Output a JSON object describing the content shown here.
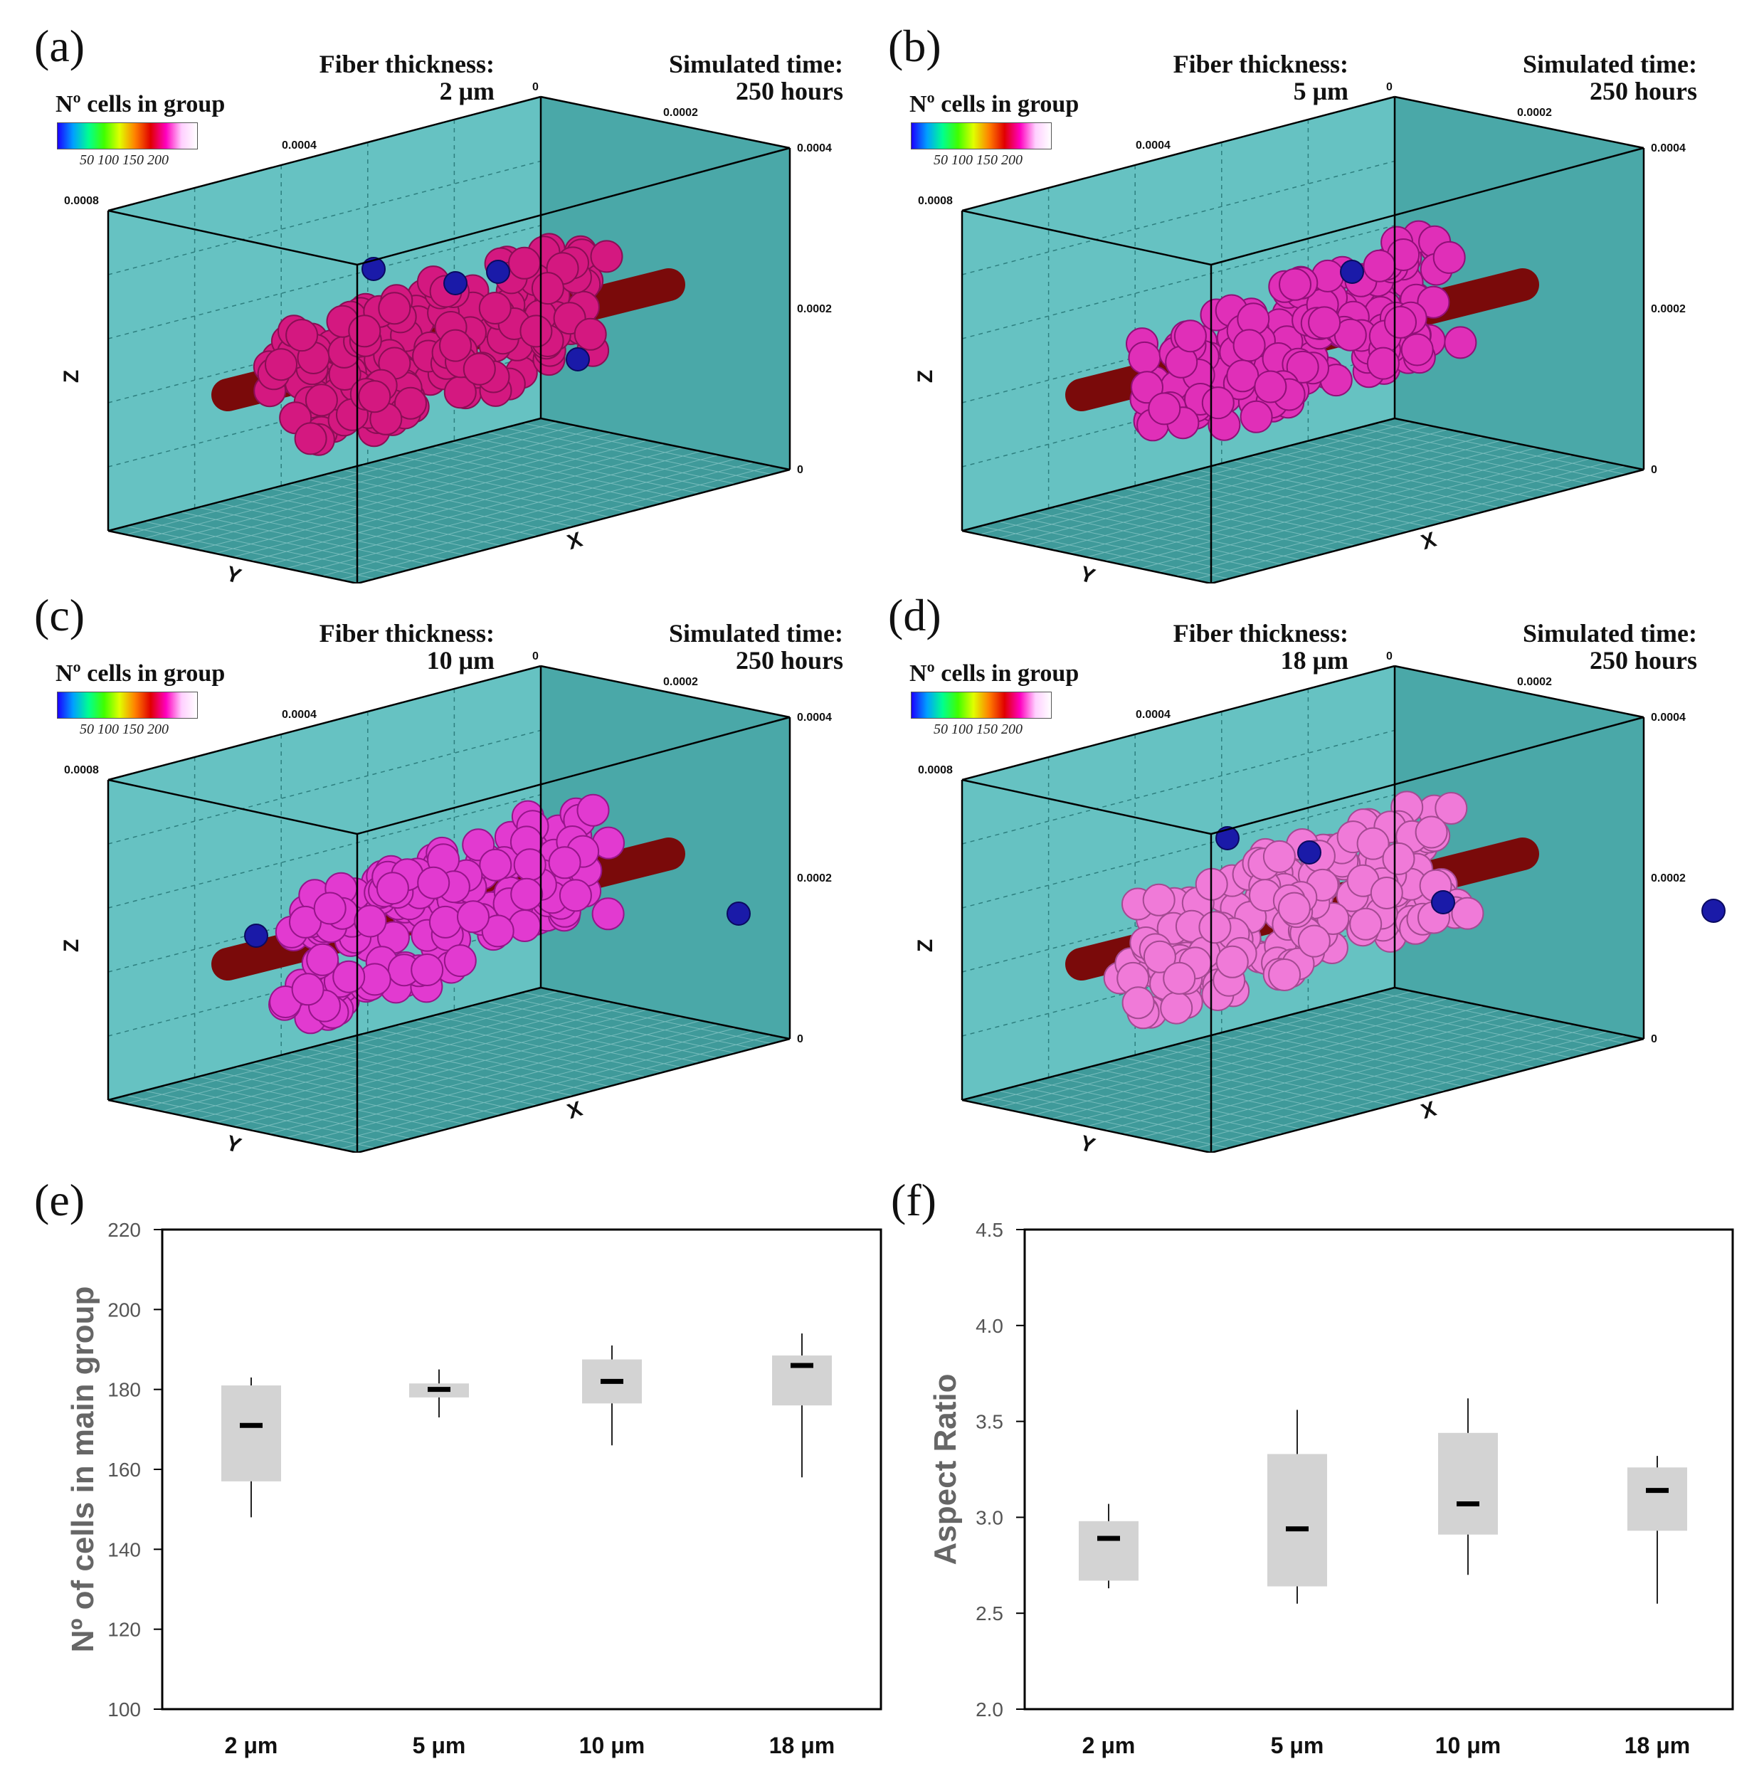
{
  "panels3d": [
    {
      "label": "(a)",
      "fiber_title": "Fiber thickness:",
      "fiber_value": "2 μm",
      "time_title": "Simulated time:",
      "time_value": "250 hours",
      "cell_color": "#d41880",
      "cell_stroke": "#8a0e55",
      "blue_cells": 4
    },
    {
      "label": "(b)",
      "fiber_title": "Fiber thickness:",
      "fiber_value": "5 μm",
      "time_title": "Simulated time:",
      "time_value": "250 hours",
      "cell_color": "#e02fb8",
      "cell_stroke": "#901078",
      "blue_cells": 1
    },
    {
      "label": "(c)",
      "fiber_title": "Fiber thickness:",
      "fiber_value": "10 μm",
      "time_title": "Simulated time:",
      "time_value": "250 hours",
      "cell_color": "#e23ad0",
      "cell_stroke": "#96158a",
      "blue_cells": 2
    },
    {
      "label": "(d)",
      "fiber_title": "Fiber thickness:",
      "fiber_value": "18 μm",
      "time_title": "Simulated time:",
      "time_value": "250 hours",
      "cell_color": "#f07ad8",
      "cell_stroke": "#a44a92",
      "blue_cells": 4
    }
  ],
  "colorbar": {
    "title": "Nº cells in group",
    "ticks": "50  100  150  200"
  },
  "axes3d": {
    "x_label": "X",
    "y_label": "Y",
    "z_label": "Z",
    "y_ticks": [
      "0.0008",
      "0.0004"
    ],
    "x_ticks": [
      "0",
      "0.0002",
      "0.0004"
    ],
    "z_ticks": [
      "0.0004",
      "0.0002",
      "0"
    ]
  },
  "colors": {
    "box_fill": "#5ebfbf",
    "box_floor": "#3f9a9a",
    "fiber": "#7a0a0a",
    "blue_cell": "#1a1aa8",
    "box_fill_plot": "#d3d3d3"
  },
  "chart_data": [
    {
      "label": "(e)",
      "type": "box",
      "categories": [
        "2 μm",
        "5 μm",
        "10 μm",
        "18 μm"
      ],
      "ylabel": "Nº of cells in main group",
      "ylim": [
        100,
        220
      ],
      "yticks": [
        "100",
        "120",
        "140",
        "160",
        "180",
        "200",
        "220"
      ],
      "boxes": [
        {
          "min": 148,
          "q1": 157,
          "median": 171,
          "q3": 181,
          "max": 183
        },
        {
          "min": 173,
          "q1": 178,
          "median": 180,
          "q3": 181.5,
          "max": 185
        },
        {
          "min": 166,
          "q1": 176.5,
          "median": 182,
          "q3": 187.5,
          "max": 191
        },
        {
          "min": 158,
          "q1": 176,
          "median": 186,
          "q3": 188.5,
          "max": 194
        }
      ]
    },
    {
      "label": "(f)",
      "type": "box",
      "categories": [
        "2 μm",
        "5 μm",
        "10 μm",
        "18 μm"
      ],
      "ylabel": "Aspect Ratio",
      "ylim": [
        2.0,
        4.5
      ],
      "yticks": [
        "2.0",
        "2.5",
        "3.0",
        "3.5",
        "4.0",
        "4.5"
      ],
      "boxes": [
        {
          "min": 2.63,
          "q1": 2.67,
          "median": 2.89,
          "q3": 2.98,
          "max": 3.07
        },
        {
          "min": 2.55,
          "q1": 2.64,
          "median": 2.94,
          "q3": 3.33,
          "max": 3.56
        },
        {
          "min": 2.7,
          "q1": 2.91,
          "median": 3.07,
          "q3": 3.44,
          "max": 3.62
        },
        {
          "min": 2.55,
          "q1": 2.93,
          "median": 3.14,
          "q3": 3.26,
          "max": 3.32
        }
      ]
    }
  ]
}
